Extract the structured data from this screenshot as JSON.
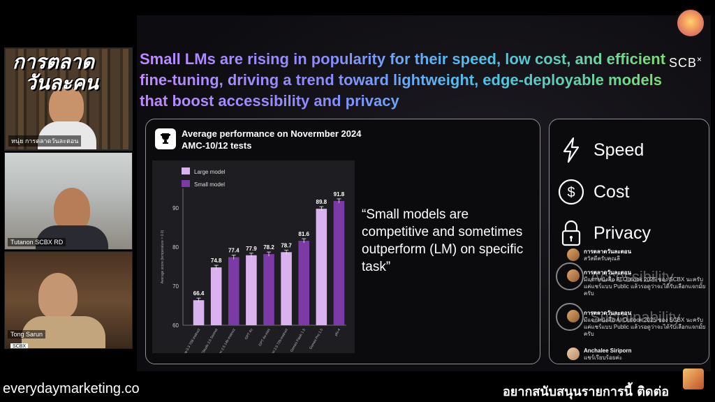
{
  "brand": {
    "line1": "การตลาด",
    "line2": "วันละคน",
    "host_label": "หนุ่ย การตลาดวันละตอน"
  },
  "participants": [
    {
      "label": "Tutanon SCBX RD"
    },
    {
      "label": "Tong Sarun",
      "tag": "SCBX"
    }
  ],
  "slide": {
    "headline": "Small LMs are rising in popularity for their speed, low cost, and efficient fine-tuning, driving a trend toward lightweight, edge-deployable models that boost accessibility and privacy",
    "logo": "SCB",
    "logo_mark": "×",
    "card_title_line1": "Average performance on Novermber 2024",
    "card_title_line2": "AMC-10/12 tests",
    "quote": "“Small models are competitive and sometimes outperform (LM) on specific task”",
    "features": [
      {
        "label": "Speed",
        "icon": "lightning-icon"
      },
      {
        "label": "Cost",
        "icon": "dollar-icon"
      },
      {
        "label": "Privacy",
        "icon": "lock-icon"
      }
    ],
    "ghost_features": [
      "Accessibility",
      "Sustainability"
    ]
  },
  "chart_data": {
    "type": "bar",
    "title": "",
    "ylabel": "Average score (temperature = 0.0)",
    "ylim": [
      60,
      95
    ],
    "yticks": [
      60,
      70,
      80,
      90
    ],
    "legend": [
      {
        "name": "Large model",
        "color": "#d9b2ef"
      },
      {
        "name": "Small model",
        "color": "#7b3aa6"
      }
    ],
    "categories": [
      "Llama-3.3 70B Instruct",
      "Claude 3.5 Sonnet",
      "Qwen 2.5 14b-Instruct",
      "GPT 4o",
      "GPT 4o-mini",
      "Qwen 2.5 72b-instruct",
      "Gemini Flash 1.5",
      "Gemini Pro 1.5",
      "phi-4"
    ],
    "values": [
      66.4,
      74.8,
      77.4,
      77.9,
      78.2,
      78.7,
      81.6,
      89.8,
      91.8
    ],
    "kinds": [
      "large",
      "large",
      "small",
      "large",
      "small",
      "large",
      "small",
      "large",
      "small"
    ]
  },
  "comments": [
    {
      "author": "การตลาดวันละตอน",
      "text": "สวัสดีครับคุณลี"
    },
    {
      "author": "การตลาดวันละตอน",
      "text": "มีแจกหนังสือ AI Outlook 2025 ของ SCBX นะครับ แค่แชร์แบบ Public แล้วรอดูว่าจะได้รับเลือกแจกมั้ยครับ"
    },
    {
      "author": "การตลาดวันละตอน",
      "text": "มีแจกหนังสือ AI Outlook 2025 ของ SCBX นะครับ แค่แชร์แบบ Public แล้วรอดูว่าจะได้รับเลือกแจกมั้ยครับ"
    },
    {
      "author": "Anchalee Siriporn",
      "text": "แชร์เรียบร้อยค่ะ"
    }
  ],
  "footer": {
    "website": "everydaymarketing.co",
    "cta": "อยากสนับสนุนรายการนี้ ติดต่อ"
  }
}
